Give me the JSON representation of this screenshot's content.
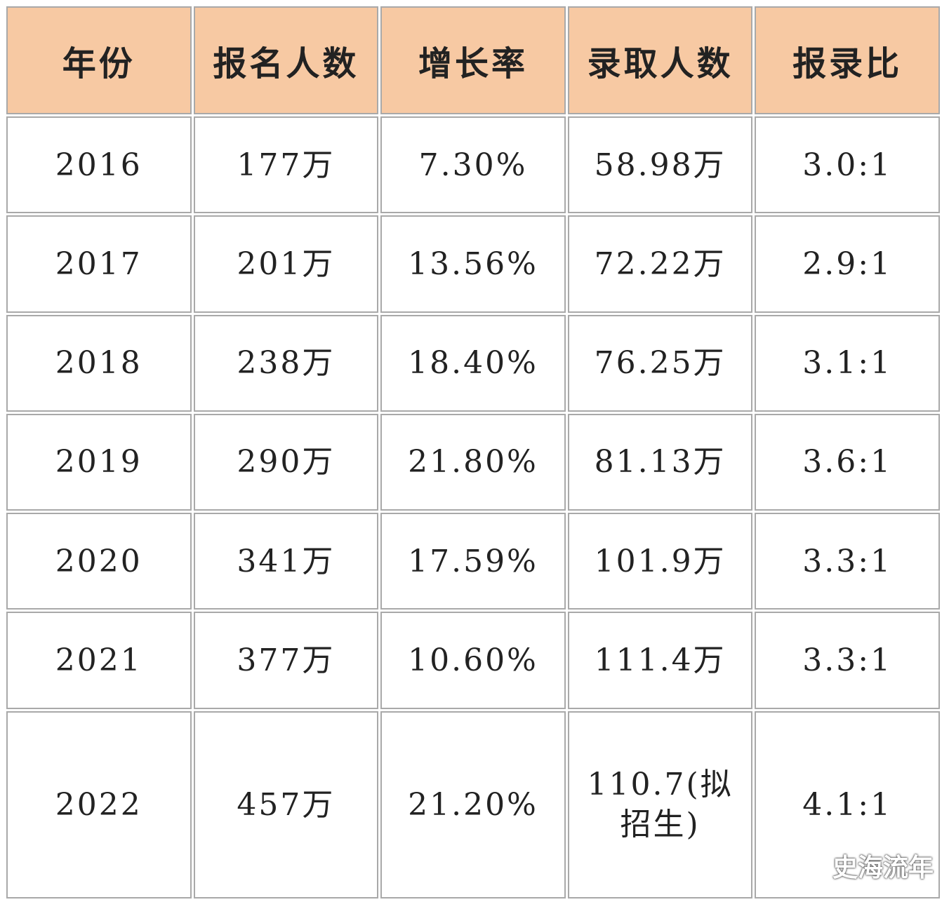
{
  "table": {
    "header": [
      "年份",
      "报名人数",
      "增长率",
      "录取人数",
      "报录比"
    ],
    "rows": [
      [
        "2016",
        "177万",
        "7.30%",
        "58.98万",
        "3.0:1"
      ],
      [
        "2017",
        "201万",
        "13.56%",
        "72.22万",
        "2.9:1"
      ],
      [
        "2018",
        "238万",
        "18.40%",
        "76.25万",
        "3.1:1"
      ],
      [
        "2019",
        "290万",
        "21.80%",
        "81.13万",
        "3.6:1"
      ],
      [
        "2020",
        "341万",
        "17.59%",
        "101.9万",
        "3.3:1"
      ],
      [
        "2021",
        "377万",
        "10.60%",
        "111.4万",
        "3.3:1"
      ],
      [
        "2022",
        "457万",
        "21.20%",
        "110.7(拟招生)",
        "4.1:1"
      ]
    ]
  },
  "watermark": "史海流年"
}
